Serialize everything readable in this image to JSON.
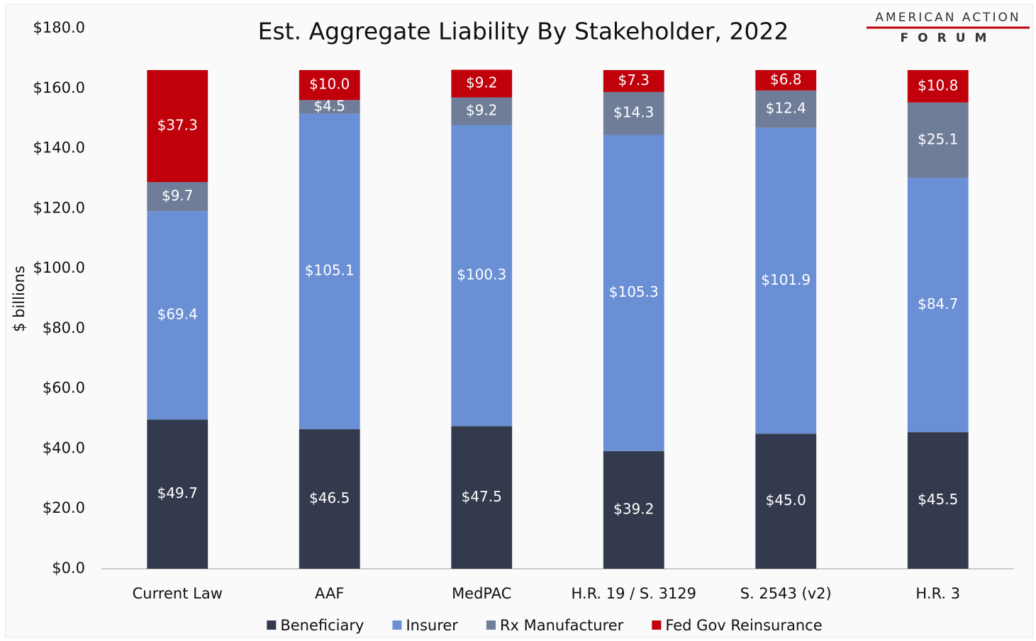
{
  "chart_data": {
    "type": "stacked_bar",
    "title": "Est. Aggregate Liability By Stakeholder, 2022",
    "y_label": "$ billions",
    "annotations": [
      "AMERICAN ACTION",
      "FORUM"
    ],
    "categories": [
      "Current Law",
      "AAF",
      "MedPAC",
      "H.R. 19 / S. 3129",
      "S. 2543 (v2)",
      "H.R. 3"
    ],
    "series": [
      {
        "name": "Beneficiary",
        "color": "#333a4d",
        "values": [
          49.7,
          46.5,
          47.5,
          39.2,
          45.0,
          45.5
        ],
        "value_labels": [
          "$49.7",
          "$46.5",
          "$47.5",
          "$39.2",
          "$45.0",
          "$45.5"
        ]
      },
      {
        "name": "Insurer",
        "color": "#6a8fd4",
        "values": [
          69.4,
          105.1,
          100.3,
          105.3,
          101.9,
          84.7
        ],
        "value_labels": [
          "$69.4",
          "$105.1",
          "$100.3",
          "$105.3",
          "$101.9",
          "$84.7"
        ]
      },
      {
        "name": "Rx Manufacturer",
        "color": "#6f7d99",
        "values": [
          9.7,
          4.5,
          9.2,
          14.3,
          12.4,
          25.1
        ],
        "value_labels": [
          "$9.7",
          "$4.5",
          "$9.2",
          "$14.3",
          "$12.4",
          "$25.1"
        ]
      },
      {
        "name": "Fed Gov Reinsurance",
        "color": "#c0000b",
        "values": [
          37.3,
          10.0,
          9.2,
          7.3,
          6.8,
          10.8
        ],
        "value_labels": [
          "$37.3",
          "$10.0",
          "$9.2",
          "$7.3",
          "$6.8",
          "$10.8"
        ]
      }
    ],
    "ylim": [
      0,
      180
    ],
    "yticks": [
      {
        "value": 0,
        "label": "$0.0"
      },
      {
        "value": 20,
        "label": "$20.0"
      },
      {
        "value": 40,
        "label": "$40.0"
      },
      {
        "value": 60,
        "label": "$60.0"
      },
      {
        "value": 80,
        "label": "$80.0"
      },
      {
        "value": 100,
        "label": "$100.0"
      },
      {
        "value": 120,
        "label": "$120.0"
      },
      {
        "value": 140,
        "label": "$140.0"
      },
      {
        "value": 160,
        "label": "$160.0"
      },
      {
        "value": 180,
        "label": "$180.0"
      }
    ],
    "grid": false,
    "legend": "bottom"
  }
}
